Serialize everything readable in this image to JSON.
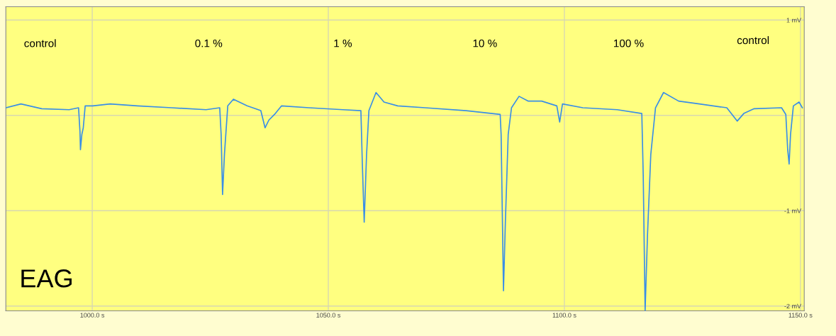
{
  "chart_data": {
    "type": "line",
    "annotations": [
      "control",
      "0.1 %",
      "1 %",
      "10 %",
      "100 %",
      "control",
      "EAG"
    ],
    "xlim": [
      981.7,
      1150.8
    ],
    "ylim": [
      -2.05,
      1.14
    ],
    "xticks": [
      {
        "value": 1000,
        "label": "1000.0 s"
      },
      {
        "value": 1050,
        "label": "1050.0 s"
      },
      {
        "value": 1100,
        "label": "1100.0 s"
      },
      {
        "value": 1150,
        "label": "1150.0 s"
      }
    ],
    "yticks": [
      {
        "value": 1,
        "label": "1 mV"
      },
      {
        "value": 0,
        "label": null
      },
      {
        "value": -1,
        "label": "-1 mV"
      },
      {
        "value": -2,
        "label": "-2 mV"
      }
    ],
    "grid": true,
    "legend": false,
    "marker": "none",
    "line_style": "solid",
    "series": [
      {
        "color": "#3a8ee6",
        "x": [
          981.7,
          984.9,
          989.3,
          995.1,
          997.1,
          997.4,
          997.5,
          997.8,
          998.1,
          998.5,
          1000.1,
          1003.8,
          1009.6,
          1016.8,
          1024.1,
          1027.0,
          1027.3,
          1027.6,
          1028.0,
          1028.7,
          1029.9,
          1032.8,
          1035.7,
          1036.6,
          1037.4,
          1038.6,
          1040.1,
          1045.9,
          1053.1,
          1056.9,
          1057.2,
          1057.6,
          1058.1,
          1058.6,
          1060.1,
          1061.8,
          1064.7,
          1070.5,
          1079.2,
          1086.4,
          1086.6,
          1087.1,
          1087.5,
          1088.1,
          1088.8,
          1090.4,
          1092.3,
          1095.2,
          1098.4,
          1099.0,
          1099.6,
          1103.9,
          1111.2,
          1116.4,
          1116.7,
          1117.1,
          1117.6,
          1118.3,
          1119.3,
          1121.0,
          1124.2,
          1128.6,
          1134.4,
          1136.6,
          1138.0,
          1140.2,
          1146.0,
          1146.9,
          1147.3,
          1147.6,
          1147.9,
          1148.5,
          1149.7,
          1150.4
        ],
        "values": [
          0.08,
          0.12,
          0.07,
          0.06,
          0.08,
          -0.17,
          -0.36,
          -0.2,
          -0.13,
          0.1,
          0.1,
          0.12,
          0.1,
          0.08,
          0.06,
          0.08,
          -0.2,
          -0.83,
          -0.41,
          0.1,
          0.17,
          0.1,
          0.05,
          -0.13,
          -0.05,
          0.01,
          0.1,
          0.08,
          0.06,
          0.05,
          -0.5,
          -1.12,
          -0.41,
          0.05,
          0.24,
          0.14,
          0.1,
          0.08,
          0.05,
          0.01,
          -0.2,
          -1.84,
          -1.12,
          -0.2,
          0.08,
          0.2,
          0.15,
          0.15,
          0.1,
          -0.07,
          0.12,
          0.08,
          0.06,
          0.02,
          -0.63,
          -2.05,
          -1.26,
          -0.41,
          0.08,
          0.24,
          0.15,
          0.12,
          0.08,
          -0.06,
          0.02,
          0.07,
          0.08,
          0.01,
          -0.36,
          -0.51,
          -0.2,
          0.1,
          0.14,
          0.08
        ]
      }
    ]
  }
}
